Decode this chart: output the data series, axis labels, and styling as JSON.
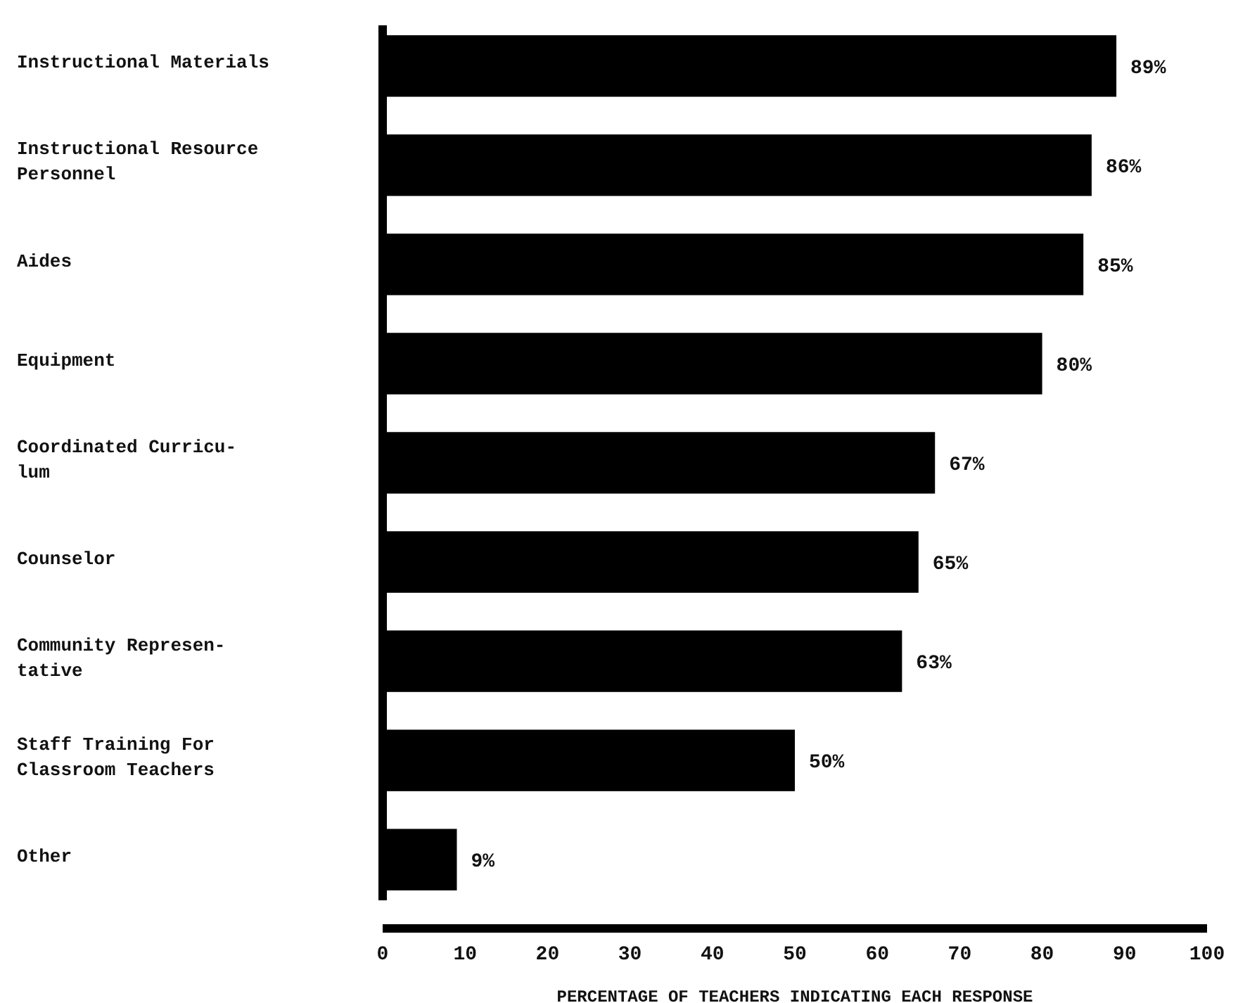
{
  "chart_data": {
    "type": "bar",
    "orientation": "horizontal",
    "xlabel": "PERCENTAGE OF TEACHERS INDICATING EACH RESPONSE",
    "categories": [
      "Instructional Materials",
      "Instructional Resource\nPersonnel",
      "Aides",
      "Equipment",
      "Coordinated Curricu-\nlum",
      "Counselor",
      "Community Represen-\ntative",
      "Staff Training For\nClassroom Teachers",
      "Other"
    ],
    "values": [
      89,
      86,
      85,
      80,
      67,
      65,
      63,
      50,
      9
    ],
    "value_labels": [
      "89%",
      "86%",
      "85%",
      "80%",
      "67%",
      "65%",
      "63%",
      "50%",
      "9%"
    ],
    "color": "#000000",
    "xlim": [
      0,
      100
    ],
    "xticks": [
      0,
      10,
      20,
      30,
      40,
      50,
      60,
      70,
      80,
      90,
      100
    ],
    "grid": false
  }
}
